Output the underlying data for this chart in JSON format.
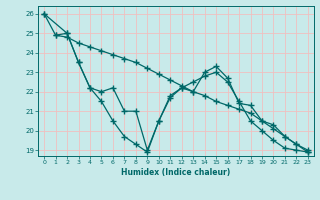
{
  "xlabel": "Humidex (Indice chaleur)",
  "background_color": "#c8eaea",
  "grid_color": "#f0c0c0",
  "line_color": "#006868",
  "xlim": [
    -0.5,
    23.5
  ],
  "ylim": [
    18.7,
    26.4
  ],
  "xticks": [
    0,
    1,
    2,
    3,
    4,
    5,
    6,
    7,
    8,
    9,
    10,
    11,
    12,
    13,
    14,
    15,
    16,
    17,
    18,
    19,
    20,
    21,
    22,
    23
  ],
  "yticks": [
    19,
    20,
    21,
    22,
    23,
    24,
    25,
    26
  ],
  "line1_x": [
    0,
    1,
    2,
    3,
    4,
    5,
    6,
    7,
    8,
    9,
    10,
    11,
    12,
    13,
    14,
    15,
    16,
    17,
    18,
    19,
    20,
    21,
    22,
    23
  ],
  "line1_y": [
    26.0,
    24.9,
    24.8,
    24.5,
    24.3,
    24.1,
    23.9,
    23.7,
    23.5,
    23.2,
    22.9,
    22.6,
    22.3,
    22.0,
    21.8,
    21.5,
    21.3,
    21.1,
    20.9,
    20.5,
    20.1,
    19.7,
    19.3,
    19.0
  ],
  "line2_x": [
    0,
    2,
    3,
    4,
    5,
    6,
    7,
    8,
    9,
    10,
    11,
    12,
    13,
    14,
    15,
    16,
    17,
    18,
    19,
    20,
    21,
    22,
    23
  ],
  "line2_y": [
    26.0,
    25.0,
    23.5,
    22.2,
    21.5,
    20.5,
    19.7,
    19.3,
    18.9,
    20.5,
    21.8,
    22.2,
    22.5,
    22.8,
    23.0,
    22.5,
    21.5,
    20.5,
    20.0,
    19.5,
    19.1,
    19.0,
    18.9
  ],
  "line3_x": [
    1,
    2,
    3,
    4,
    5,
    6,
    7,
    8,
    9,
    10,
    11,
    12,
    13,
    14,
    15,
    16,
    17,
    18,
    19,
    20,
    21,
    22,
    23
  ],
  "line3_y": [
    24.9,
    25.0,
    23.5,
    22.2,
    22.0,
    22.2,
    21.0,
    21.0,
    19.0,
    20.5,
    21.7,
    22.2,
    22.0,
    23.0,
    23.3,
    22.7,
    21.4,
    21.3,
    20.5,
    20.3,
    19.7,
    19.3,
    18.9
  ]
}
